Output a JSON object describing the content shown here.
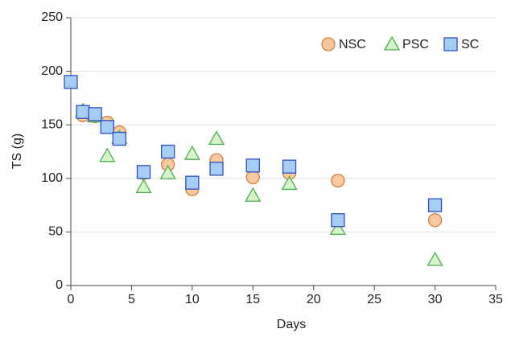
{
  "chart_data": {
    "type": "scatter",
    "x_label": "Days",
    "y_label": "TS (g)",
    "xlim": [
      0,
      35
    ],
    "xticks": [
      0,
      5,
      10,
      15,
      20,
      25,
      30,
      35
    ],
    "ylim": [
      0,
      250
    ],
    "yticks": [
      0,
      50,
      100,
      150,
      200,
      250
    ],
    "grid": true,
    "legend": "top-right",
    "series": [
      {
        "name": "NSC",
        "marker": "circle",
        "color": "#f8c9a0",
        "edge": "#d0803c",
        "x": [
          1,
          2,
          3,
          4,
          6,
          8,
          10,
          12,
          15,
          18,
          22,
          30
        ],
        "values": [
          159,
          158,
          152,
          143,
          105,
          113,
          90,
          117,
          101,
          105,
          98,
          61
        ]
      },
      {
        "name": "PSC",
        "marker": "triangle",
        "color": "#d8f2cc",
        "edge": "#4caf50",
        "x": [
          1,
          2,
          3,
          4,
          6,
          8,
          10,
          12,
          15,
          18,
          22,
          30
        ],
        "values": [
          163,
          158,
          121,
          138,
          92,
          105,
          123,
          137,
          84,
          95,
          53,
          24
        ]
      },
      {
        "name": "SC",
        "marker": "square",
        "color": "#a8cdf5",
        "edge": "#2f4fbf",
        "x": [
          0,
          1,
          2,
          3,
          4,
          6,
          8,
          10,
          12,
          15,
          18,
          22,
          30
        ],
        "values": [
          190,
          162,
          160,
          148,
          137,
          106,
          125,
          96,
          109,
          112,
          111,
          61,
          75
        ]
      }
    ]
  }
}
